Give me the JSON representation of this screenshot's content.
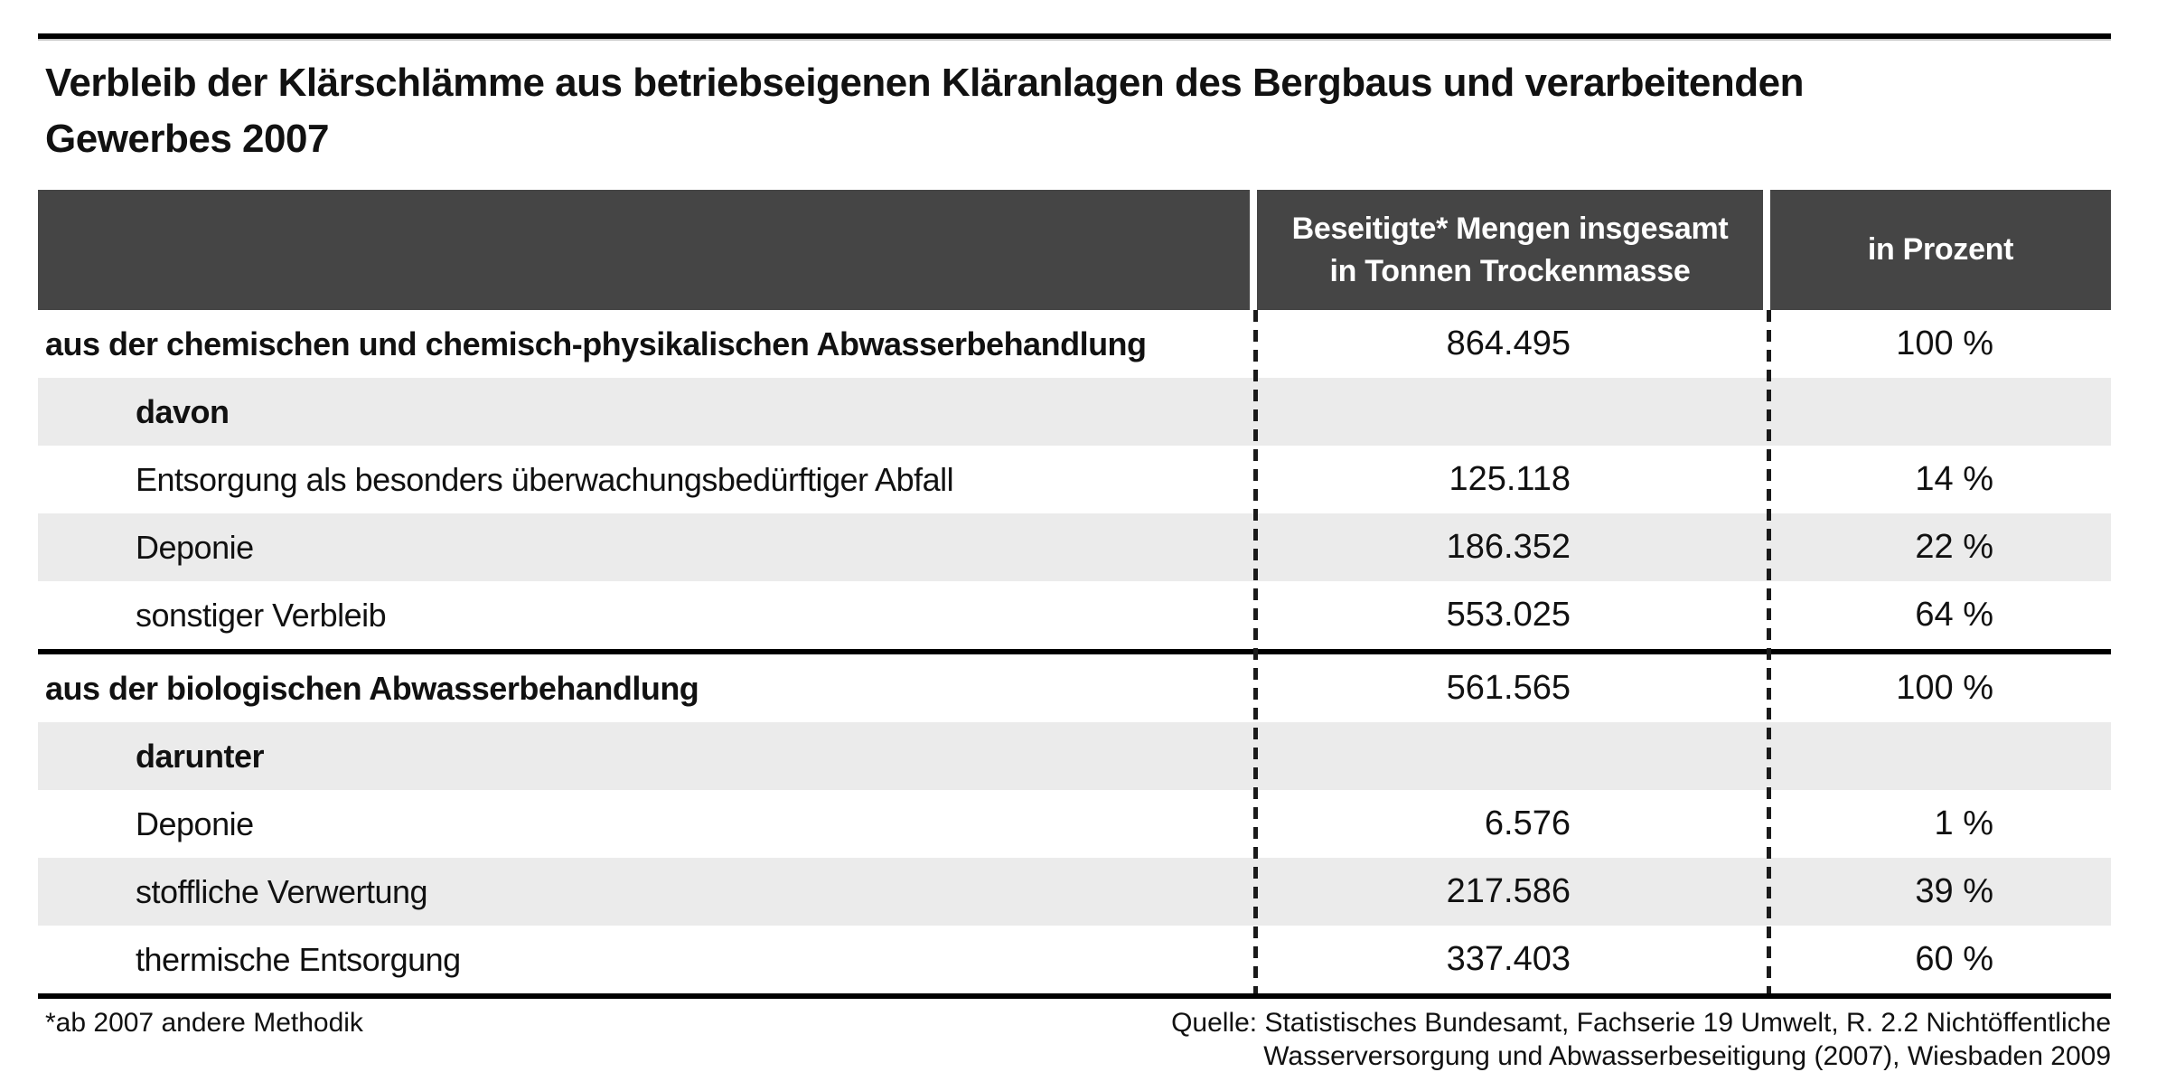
{
  "title": {
    "line1": "Verbleib der Klärschlämme aus betriebseigenen Kläranlagen des Bergbaus und verarbeitenden",
    "line2": "Gewerbes 2007"
  },
  "table": {
    "header": {
      "label_col": "",
      "amount_col_line1": "Beseitigte* Mengen insgesamt",
      "amount_col_line2": "in Tonnen Trockenmasse",
      "percent_col": "in Prozent"
    },
    "rows": [
      {
        "label": "aus der chemischen und chemisch-physikalischen Abwasserbehandlung",
        "amount": "864.495",
        "percent": "100 %"
      },
      {
        "label": "davon",
        "amount": "",
        "percent": ""
      },
      {
        "label": "Entsorgung als besonders überwachungsbedürftiger Abfall",
        "amount": "125.118",
        "percent": "14 %"
      },
      {
        "label": "Deponie",
        "amount": "186.352",
        "percent": "22 %"
      },
      {
        "label": "sonstiger Verbleib",
        "amount": "553.025",
        "percent": "64 %"
      },
      {
        "label": "aus der biologischen Abwasserbehandlung",
        "amount": "561.565",
        "percent": "100 %"
      },
      {
        "label": "darunter",
        "amount": "",
        "percent": ""
      },
      {
        "label": "Deponie",
        "amount": "6.576",
        "percent": "1 %"
      },
      {
        "label": "stoffliche Verwertung",
        "amount": "217.586",
        "percent": "39 %"
      },
      {
        "label": "thermische Entsorgung",
        "amount": "337.403",
        "percent": "60 %"
      }
    ]
  },
  "footer": {
    "footnote": "*ab 2007 andere Methodik",
    "source_line1": "Quelle: Statistisches Bundesamt, Fachserie 19 Umwelt, R. 2.2 Nichtöffentliche",
    "source_line2": "Wasserversorgung und Abwasserbeseitigung (2007), Wiesbaden 2009"
  },
  "colors": {
    "header_bg": "#454545",
    "header_text": "#ffffff",
    "alt_row_bg": "#ebebeb",
    "rule": "#000000",
    "text": "#111111"
  },
  "chart_data": {
    "type": "table",
    "title": "Verbleib der Klärschlämme aus betriebseigenen Kläranlagen des Bergbaus und verarbeitenden Gewerbes 2007",
    "columns": [
      "",
      "Beseitigte* Mengen insgesamt in Tonnen Trockenmasse",
      "in Prozent"
    ],
    "sections": [
      {
        "section_label": "aus der chemischen und chemisch-physikalischen Abwasserbehandlung",
        "section_tonnes": 864495,
        "section_percent": 100,
        "breakdown_type": "davon",
        "items": [
          {
            "label": "Entsorgung als besonders überwachungsbedürftiger Abfall",
            "tonnes": 125118,
            "percent": 14
          },
          {
            "label": "Deponie",
            "tonnes": 186352,
            "percent": 22
          },
          {
            "label": "sonstiger Verbleib",
            "tonnes": 553025,
            "percent": 64
          }
        ]
      },
      {
        "section_label": "aus der biologischen Abwasserbehandlung",
        "section_tonnes": 561565,
        "section_percent": 100,
        "breakdown_type": "darunter",
        "items": [
          {
            "label": "Deponie",
            "tonnes": 6576,
            "percent": 1
          },
          {
            "label": "stoffliche Verwertung",
            "tonnes": 217586,
            "percent": 39
          },
          {
            "label": "thermische Entsorgung",
            "tonnes": 337403,
            "percent": 60
          }
        ]
      }
    ],
    "footnote": "*ab 2007 andere Methodik",
    "source": "Quelle: Statistisches Bundesamt, Fachserie 19 Umwelt, R. 2.2 Nichtöffentliche Wasserversorgung und Abwasserbeseitigung (2007), Wiesbaden 2009"
  }
}
